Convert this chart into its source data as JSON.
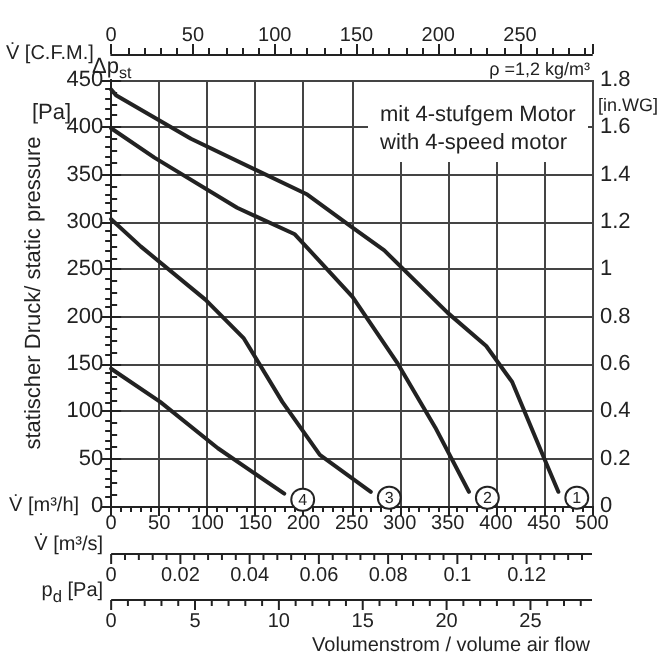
{
  "chart_data": {
    "type": "line",
    "xlabel": "V̇ [m³/h]",
    "x2label": "V̇ [C.F.M.]",
    "ylabel": "statischer Druck/ static pressure",
    "y2label": "[in.WG]",
    "annotations": [
      "Δp$_{st}$",
      "[Pa]",
      "ρ =1,2 kg/m³",
      "mit 4-stufgem Motor",
      "with 4-speed motor",
      "Volumenstrom / volume air flow",
      "V̇ [m³/s]",
      "0",
      "0.02",
      "0.04",
      "0.06",
      "0.08",
      "0.1",
      "0.12",
      "p$_{d}$ [Pa]",
      "0",
      "5",
      "10",
      "15",
      "20",
      "25"
    ],
    "series": [
      {
        "name": "1",
        "color": "#222222",
        "x": [
          0,
          5,
          83,
          204,
          251,
          284,
          350,
          390,
          417,
          450,
          465
        ],
        "values": [
          440,
          434,
          388,
          329,
          294,
          270,
          204,
          169,
          131,
          51,
          15
        ]
      },
      {
        "name": "2",
        "color": "#222222",
        "x": [
          0,
          45,
          131,
          191,
          251,
          297,
          337,
          372
        ],
        "values": [
          399,
          368,
          315,
          287,
          221,
          152,
          83,
          15
        ]
      },
      {
        "name": "3",
        "color": "#222222",
        "x": [
          0,
          31,
          98,
          138,
          178,
          217,
          270
        ],
        "values": [
          303,
          274,
          218,
          177,
          110,
          54,
          15
        ]
      },
      {
        "name": "4",
        "color": "#222222",
        "x": [
          0,
          51,
          111,
          180
        ],
        "values": [
          145,
          110,
          61,
          13
        ]
      }
    ],
    "xlim": [
      0,
      500
    ],
    "xticks": [
      0,
      50,
      100,
      150,
      200,
      250,
      300,
      350,
      400,
      450,
      500
    ],
    "x2lim": [
      0,
      294
    ],
    "x2ticks": [
      0,
      50,
      100,
      150,
      200,
      250
    ],
    "ylim": [
      0,
      450
    ],
    "yticks": [
      0,
      50,
      100,
      150,
      200,
      250,
      300,
      350,
      400,
      450
    ],
    "y2lim": [
      0,
      1.8
    ],
    "y2ticks": [
      0,
      0.2,
      0.4,
      0.6,
      0.8,
      1,
      1.2,
      1.4,
      1.6,
      1.8
    ],
    "grid": true,
    "legend": false,
    "marker": "none",
    "line_style": "solid"
  }
}
